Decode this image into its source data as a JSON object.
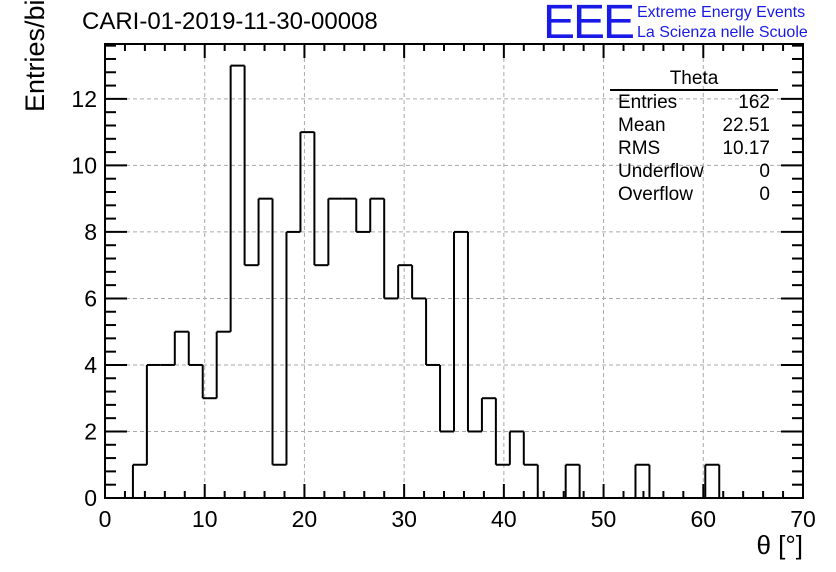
{
  "title": "CARI-01-2019-11-30-00008",
  "logo": {
    "mark": "EEE",
    "line1": "Extreme Energy Events",
    "line2": "La Scienza nelle Scuole",
    "color": "#1a1ae6"
  },
  "stats": {
    "name": "Theta",
    "rows": [
      {
        "label": "Entries",
        "value": "162"
      },
      {
        "label": "Mean",
        "value": "22.51"
      },
      {
        "label": "RMS",
        "value": "10.17"
      },
      {
        "label": "Underflow",
        "value": "0"
      },
      {
        "label": "Overflow",
        "value": "0"
      }
    ]
  },
  "chart_data": {
    "type": "bar",
    "title": "CARI-01-2019-11-30-00008",
    "xlabel": "θ [°]",
    "ylabel": "Entries/bin",
    "xlim": [
      0,
      70
    ],
    "ylim": [
      0,
      13.65
    ],
    "grid": true,
    "bin_width": 1.4,
    "bin_start": 0,
    "values": [
      0,
      0,
      1,
      4,
      4,
      5,
      4,
      3,
      5,
      13,
      7,
      9,
      1,
      8,
      11,
      7,
      9,
      9,
      8,
      9,
      6,
      7,
      6,
      4,
      2,
      8,
      2,
      3,
      1,
      2,
      1,
      0,
      0,
      1,
      0,
      0,
      0,
      0,
      1,
      0,
      0,
      0,
      0,
      1,
      0,
      0,
      0,
      0,
      0,
      0
    ],
    "xticks": [
      "0",
      "10",
      "20",
      "30",
      "40",
      "50",
      "60",
      "70"
    ],
    "yticks": [
      "0",
      "2",
      "4",
      "6",
      "8",
      "10",
      "12"
    ]
  }
}
